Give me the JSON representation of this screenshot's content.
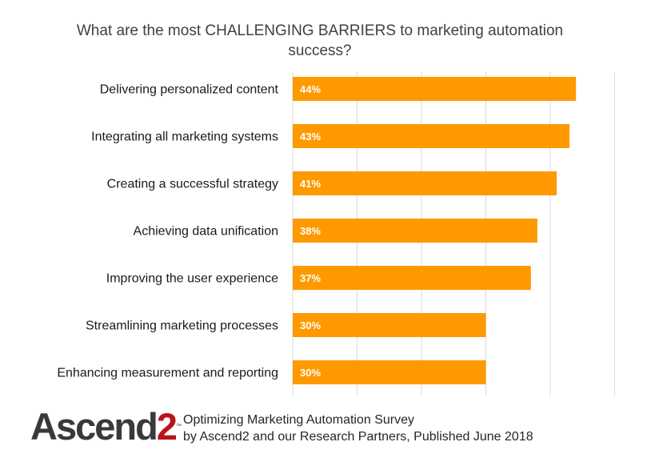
{
  "chart_data": {
    "type": "bar",
    "orientation": "horizontal",
    "title": "What are the most CHALLENGING BARRIERS to marketing automation success?",
    "categories": [
      "Delivering personalized content",
      "Integrating all marketing systems",
      "Creating a successful strategy",
      "Achieving data unification",
      "Improving the user experience",
      "Streamlining marketing processes",
      "Enhancing measurement and reporting"
    ],
    "values": [
      44,
      43,
      41,
      38,
      37,
      30,
      30
    ],
    "value_labels": [
      "44%",
      "43%",
      "41%",
      "38%",
      "37%",
      "30%",
      "30%"
    ],
    "xlim": [
      0,
      50
    ],
    "grid": true,
    "bar_color": "#ff9900",
    "xlabel": "",
    "ylabel": ""
  },
  "logo": {
    "brand": "Ascend",
    "digit": "2",
    "mark": "™",
    "brand_color": "#38393b",
    "digit_color": "#b8141b"
  },
  "footer": {
    "line1": "Optimizing Marketing Automation Survey",
    "line2": "by Ascend2 and our Research Partners, Published June 2018"
  }
}
